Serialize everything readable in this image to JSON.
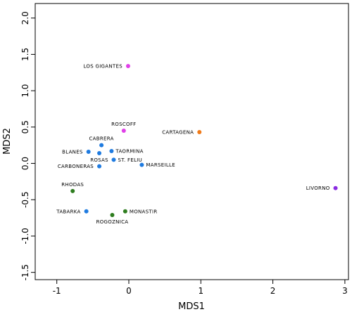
{
  "chart_data": {
    "type": "scatter",
    "title": "",
    "xlabel": "MDS1",
    "ylabel": "MDS2",
    "xlim": [
      -1.3,
      3.05
    ],
    "ylim": [
      -1.6,
      2.2
    ],
    "xticks": [
      -1,
      0,
      1,
      2,
      3
    ],
    "yticks": [
      -1.5,
      -1.0,
      -0.5,
      0.0,
      0.5,
      1.0,
      1.5,
      2.0
    ],
    "ytick_labels": [
      "-1.5",
      "-1.0",
      "-0.5",
      "0.0",
      "0.5",
      "1.0",
      "1.5",
      "2.0"
    ],
    "xtick_labels": [
      "-1",
      "0",
      "1",
      "2",
      "3"
    ],
    "grid": false,
    "points": [
      {
        "label": "LOS GIGANTES",
        "x": -0.01,
        "y": 1.34,
        "color": "#e040e8",
        "label_side": "left"
      },
      {
        "label": "ROSCOFF",
        "x": -0.07,
        "y": 0.45,
        "color": "#e040e8",
        "label_side": "above"
      },
      {
        "label": "CARTAGENA",
        "x": 0.98,
        "y": 0.43,
        "color": "#f07a18",
        "label_side": "left"
      },
      {
        "label": "LIVORNO",
        "x": 2.87,
        "y": -0.34,
        "color": "#8a2be2",
        "label_side": "left"
      },
      {
        "label": "CABRERA",
        "x": -0.38,
        "y": 0.25,
        "color": "#1f7be0",
        "label_side": "above"
      },
      {
        "label": "BLANES",
        "x": -0.56,
        "y": 0.16,
        "color": "#1f7be0",
        "label_side": "left"
      },
      {
        "label": "ROSAS",
        "x": -0.41,
        "y": 0.14,
        "color": "#1f7be0",
        "label_side": "below"
      },
      {
        "label": "TAORMINA",
        "x": -0.24,
        "y": 0.17,
        "color": "#1f7be0",
        "label_side": "right"
      },
      {
        "label": "ST. FELIU",
        "x": -0.21,
        "y": 0.05,
        "color": "#1f7be0",
        "label_side": "right"
      },
      {
        "label": "MARSEILLE",
        "x": 0.18,
        "y": -0.02,
        "color": "#1f7be0",
        "label_side": "right"
      },
      {
        "label": "CARBONERAS",
        "x": -0.41,
        "y": -0.04,
        "color": "#1f7be0",
        "label_side": "left"
      },
      {
        "label": "TABARKA",
        "x": -0.59,
        "y": -0.66,
        "color": "#1f7be0",
        "label_side": "left"
      },
      {
        "label": "RHODAS",
        "x": -0.78,
        "y": -0.38,
        "color": "#2e7d1f",
        "label_side": "above"
      },
      {
        "label": "ROGOZNICA",
        "x": -0.23,
        "y": -0.71,
        "color": "#2e7d1f",
        "label_side": "below"
      },
      {
        "label": "MONASTIR",
        "x": -0.05,
        "y": -0.66,
        "color": "#2e7d1f",
        "label_side": "right"
      }
    ]
  }
}
